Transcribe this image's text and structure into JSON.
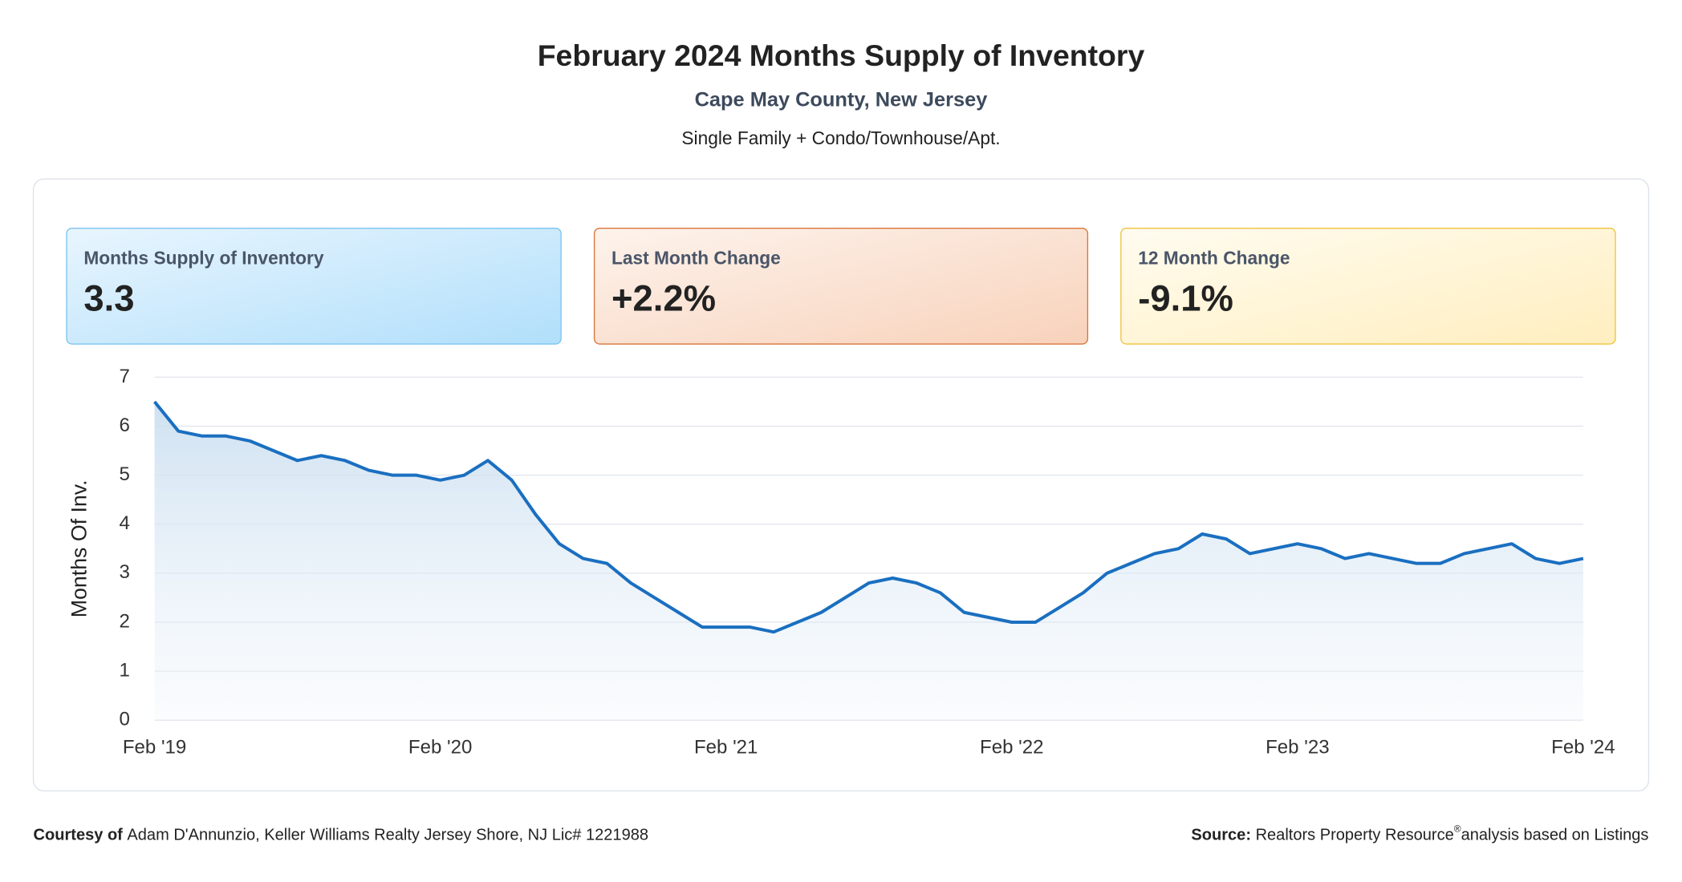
{
  "header": {
    "title": "February 2024 Months Supply of Inventory",
    "subtitle": "Cape May County, New Jersey",
    "note": "Single Family + Condo/Townhouse/Apt."
  },
  "cards": [
    {
      "label": "Months Supply of Inventory",
      "value": "3.3"
    },
    {
      "label": "Last Month Change",
      "value": "+2.2%"
    },
    {
      "label": "12 Month Change",
      "value": "-9.1%"
    }
  ],
  "chart_data": {
    "type": "line",
    "y_label": "Months Of Inv.",
    "color": "#1a6fc0",
    "grid": true,
    "ylim": [
      0,
      7
    ],
    "yticks": [
      0,
      1,
      2,
      3,
      4,
      5,
      6,
      7
    ],
    "categories": [
      "Feb '19",
      null,
      null,
      null,
      null,
      null,
      null,
      null,
      null,
      null,
      null,
      null,
      "Feb '20",
      null,
      null,
      null,
      null,
      null,
      null,
      null,
      null,
      null,
      null,
      null,
      "Feb '21",
      null,
      null,
      null,
      null,
      null,
      null,
      null,
      null,
      null,
      null,
      null,
      "Feb '22",
      null,
      null,
      null,
      null,
      null,
      null,
      null,
      null,
      null,
      null,
      null,
      "Feb '23",
      null,
      null,
      null,
      null,
      null,
      null,
      null,
      null,
      null,
      null,
      null,
      "Feb '24"
    ],
    "values": [
      6.5,
      5.9,
      5.8,
      5.8,
      5.7,
      5.5,
      5.3,
      5.4,
      5.3,
      5.1,
      5.0,
      5.0,
      4.9,
      5.0,
      5.3,
      4.9,
      4.2,
      3.6,
      3.3,
      3.2,
      2.8,
      2.5,
      2.2,
      1.9,
      1.9,
      1.9,
      1.8,
      2.0,
      2.2,
      2.5,
      2.8,
      2.9,
      2.8,
      2.6,
      2.2,
      2.1,
      2.0,
      2.0,
      2.3,
      2.6,
      3.0,
      3.2,
      3.4,
      3.5,
      3.8,
      3.7,
      3.4,
      3.5,
      3.6,
      3.5,
      3.3,
      3.4,
      3.3,
      3.2,
      3.2,
      3.4,
      3.5,
      3.6,
      3.3,
      3.2,
      3.3
    ]
  },
  "footer": {
    "courtesy_label": "Courtesy of",
    "courtesy_text": "Adam D'Annunzio, Keller Williams Realty Jersey Shore, NJ Lic# 1221988",
    "source_label": "Source:",
    "source_name": "Realtors Property Resource",
    "source_mark": "®",
    "source_text": "analysis based on Listings"
  }
}
